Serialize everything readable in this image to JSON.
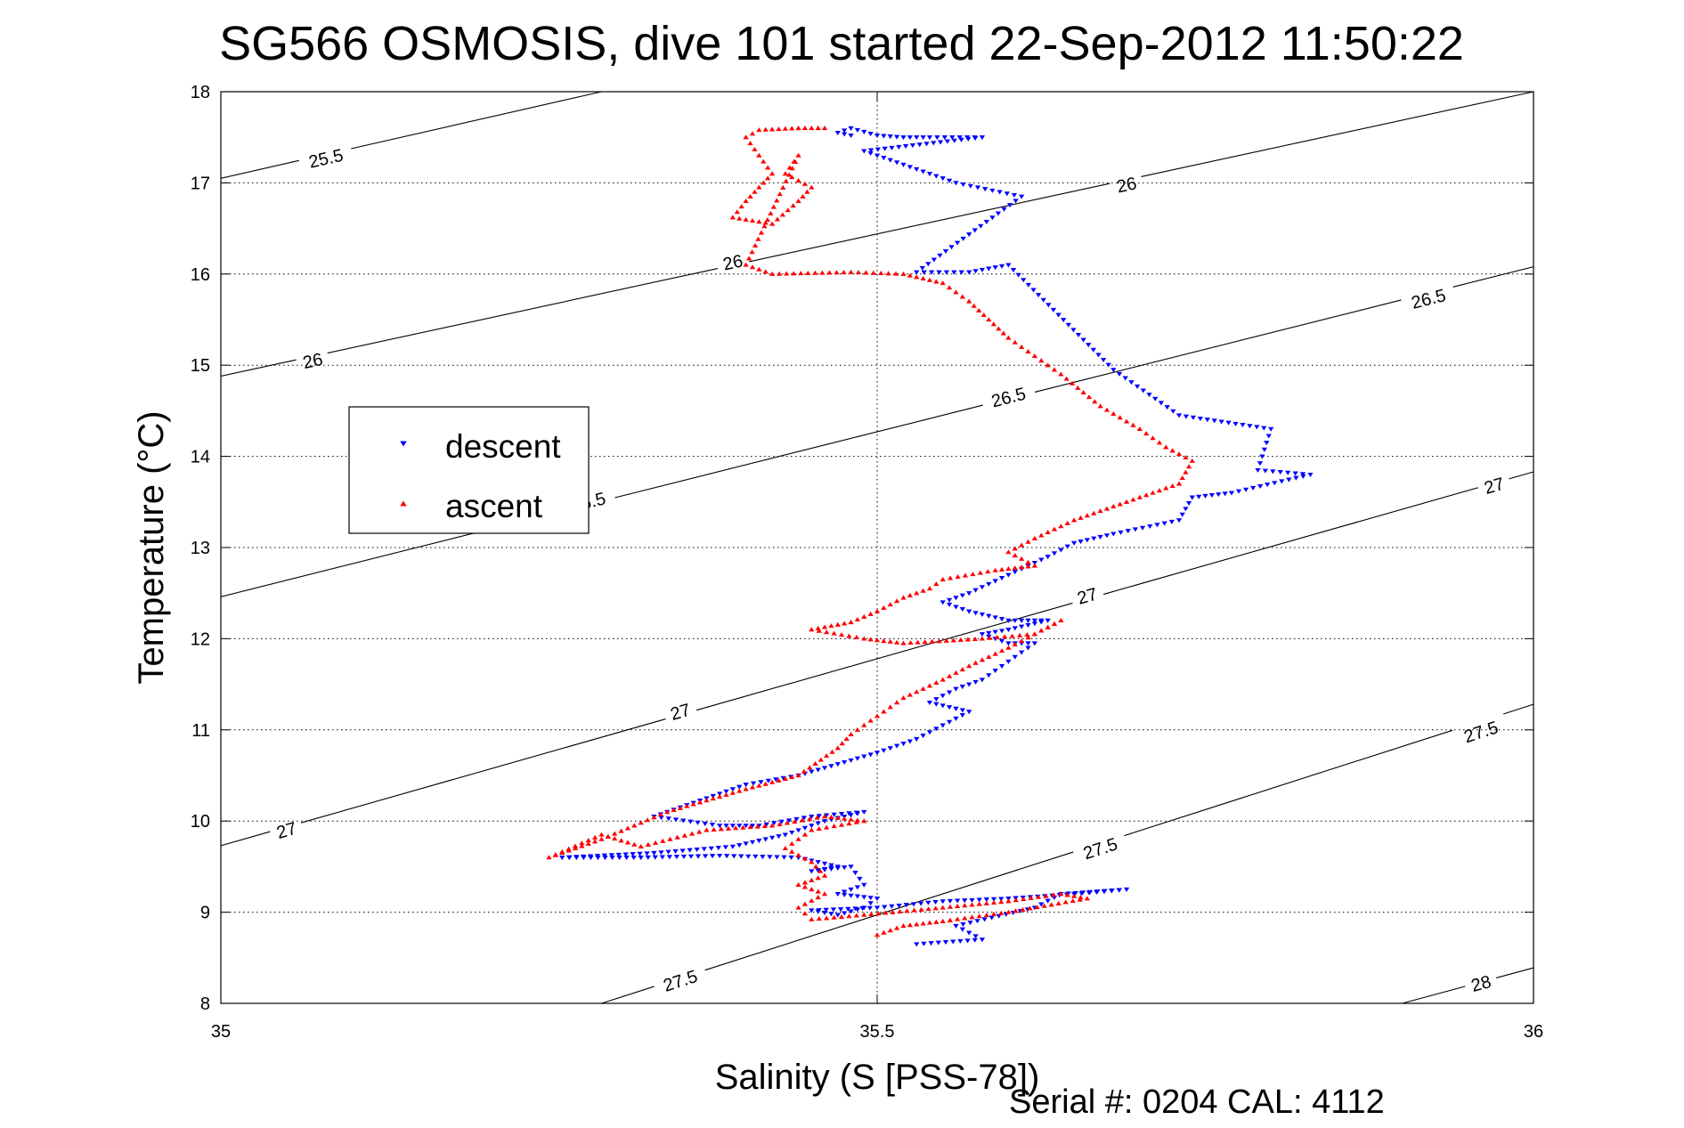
{
  "chart_data": {
    "type": "scatter",
    "title": "SG566 OSMOSIS, dive 101 started 22-Sep-2012 11:50:22",
    "xlabel": "Salinity (S [PSS-78])",
    "ylabel": "Temperature (°C)",
    "xlim": [
      35,
      36
    ],
    "ylim": [
      8,
      18
    ],
    "x_ticks": [
      "35",
      "35.5",
      "36"
    ],
    "y_ticks": [
      "8",
      "9",
      "10",
      "11",
      "12",
      "13",
      "14",
      "15",
      "16",
      "17",
      "18"
    ],
    "grid": true,
    "legend_position": "left-middle",
    "footer": "Serial #: 0204  CAL: 4112",
    "density_contours": [
      {
        "level": 25.5,
        "label": "25.5",
        "points": [
          [
            35.0,
            17.05
          ],
          [
            35.29,
            18.0
          ]
        ],
        "label_positions": [
          [
            35.08,
            17.27
          ]
        ]
      },
      {
        "level": 26.0,
        "label": "26",
        "points": [
          [
            35.0,
            14.88
          ],
          [
            36.0,
            18.0
          ]
        ],
        "label_positions": [
          [
            35.07,
            15.05
          ],
          [
            35.39,
            16.13
          ],
          [
            35.69,
            16.98
          ]
        ]
      },
      {
        "level": 26.5,
        "label": "26.5",
        "points": [
          [
            35.0,
            12.46
          ],
          [
            36.0,
            16.08
          ]
        ],
        "label_positions": [
          [
            35.28,
            13.5
          ],
          [
            35.6,
            14.65
          ],
          [
            35.92,
            15.73
          ]
        ]
      },
      {
        "level": 27.0,
        "label": "27",
        "points": [
          [
            35.0,
            9.73
          ],
          [
            36.0,
            13.83
          ]
        ],
        "label_positions": [
          [
            35.05,
            9.9
          ],
          [
            35.35,
            11.2
          ],
          [
            35.66,
            12.47
          ],
          [
            35.97,
            13.68
          ]
        ]
      },
      {
        "level": 27.5,
        "label": "27.5",
        "points": [
          [
            35.29,
            8.0
          ],
          [
            36.0,
            11.28
          ]
        ],
        "label_positions": [
          [
            35.35,
            8.25
          ],
          [
            35.67,
            9.7
          ],
          [
            35.96,
            10.98
          ]
        ]
      },
      {
        "level": 28.0,
        "label": "28",
        "points": [
          [
            35.9,
            8.0
          ],
          [
            36.0,
            8.39
          ]
        ],
        "label_positions": [
          [
            35.96,
            8.22
          ]
        ]
      }
    ],
    "series": [
      {
        "name": "descent",
        "color": "#0000ff",
        "marker": "triangle-down",
        "path": [
          [
            35.48,
            17.52
          ],
          [
            35.47,
            17.55
          ],
          [
            35.48,
            17.6
          ],
          [
            35.5,
            17.52
          ],
          [
            35.52,
            17.5
          ],
          [
            35.54,
            17.5
          ],
          [
            35.58,
            17.5
          ],
          [
            35.49,
            17.35
          ],
          [
            35.56,
            17.0
          ],
          [
            35.61,
            16.85
          ],
          [
            35.53,
            16.02
          ],
          [
            35.57,
            16.02
          ],
          [
            35.6,
            16.1
          ],
          [
            35.68,
            14.95
          ],
          [
            35.73,
            14.45
          ],
          [
            35.8,
            14.3
          ],
          [
            35.79,
            13.85
          ],
          [
            35.83,
            13.8
          ],
          [
            35.77,
            13.6
          ],
          [
            35.74,
            13.55
          ],
          [
            35.73,
            13.3
          ],
          [
            35.68,
            13.15
          ],
          [
            35.65,
            13.05
          ],
          [
            35.63,
            12.9
          ],
          [
            35.6,
            12.7
          ],
          [
            35.57,
            12.5
          ],
          [
            35.55,
            12.4
          ],
          [
            35.57,
            12.3
          ],
          [
            35.6,
            12.2
          ],
          [
            35.63,
            12.2
          ],
          [
            35.6,
            12.1
          ],
          [
            35.58,
            12.05
          ],
          [
            35.6,
            11.95
          ],
          [
            35.62,
            11.95
          ],
          [
            35.6,
            11.75
          ],
          [
            35.58,
            11.55
          ],
          [
            35.56,
            11.45
          ],
          [
            35.54,
            11.3
          ],
          [
            35.57,
            11.2
          ],
          [
            35.55,
            11.05
          ],
          [
            35.53,
            10.9
          ],
          [
            35.5,
            10.75
          ],
          [
            35.44,
            10.5
          ],
          [
            35.4,
            10.4
          ],
          [
            35.36,
            10.2
          ],
          [
            35.33,
            10.05
          ],
          [
            35.38,
            9.95
          ],
          [
            35.41,
            9.95
          ],
          [
            35.45,
            10.05
          ],
          [
            35.49,
            10.1
          ],
          [
            35.46,
            10.0
          ],
          [
            35.43,
            9.85
          ],
          [
            35.39,
            9.72
          ],
          [
            35.33,
            9.65
          ],
          [
            35.26,
            9.6
          ],
          [
            35.32,
            9.6
          ],
          [
            35.38,
            9.62
          ],
          [
            35.44,
            9.6
          ],
          [
            35.47,
            9.5
          ],
          [
            35.45,
            9.45
          ],
          [
            35.48,
            9.5
          ],
          [
            35.49,
            9.3
          ],
          [
            35.47,
            9.2
          ],
          [
            35.5,
            9.15
          ],
          [
            35.49,
            9.05
          ],
          [
            35.47,
            8.97
          ],
          [
            35.45,
            9.02
          ],
          [
            35.5,
            9.05
          ],
          [
            35.55,
            9.12
          ],
          [
            35.6,
            9.15
          ],
          [
            35.65,
            9.2
          ],
          [
            35.69,
            9.25
          ],
          [
            35.64,
            9.2
          ],
          [
            35.62,
            9.05
          ],
          [
            35.56,
            8.85
          ],
          [
            35.58,
            8.7
          ],
          [
            35.53,
            8.65
          ]
        ]
      },
      {
        "name": "ascent",
        "color": "#ff0000",
        "marker": "triangle-up",
        "path": [
          [
            35.46,
            17.6
          ],
          [
            35.44,
            17.6
          ],
          [
            35.41,
            17.58
          ],
          [
            35.4,
            17.5
          ],
          [
            35.41,
            17.3
          ],
          [
            35.42,
            17.1
          ],
          [
            35.41,
            16.95
          ],
          [
            35.4,
            16.8
          ],
          [
            35.39,
            16.62
          ],
          [
            35.42,
            16.55
          ],
          [
            35.44,
            16.8
          ],
          [
            35.45,
            16.95
          ],
          [
            35.43,
            17.1
          ],
          [
            35.44,
            17.3
          ],
          [
            35.4,
            16.1
          ],
          [
            35.42,
            16.0
          ],
          [
            35.48,
            16.02
          ],
          [
            35.52,
            16.0
          ],
          [
            35.55,
            15.9
          ],
          [
            35.57,
            15.7
          ],
          [
            35.6,
            15.3
          ],
          [
            35.62,
            15.1
          ],
          [
            35.64,
            14.9
          ],
          [
            35.67,
            14.55
          ],
          [
            35.7,
            14.3
          ],
          [
            35.72,
            14.1
          ],
          [
            35.74,
            13.95
          ],
          [
            35.73,
            13.7
          ],
          [
            35.68,
            13.45
          ],
          [
            35.65,
            13.3
          ],
          [
            35.62,
            13.1
          ],
          [
            35.6,
            12.95
          ],
          [
            35.62,
            12.8
          ],
          [
            35.59,
            12.75
          ],
          [
            35.55,
            12.65
          ],
          [
            35.54,
            12.55
          ],
          [
            35.52,
            12.45
          ],
          [
            35.5,
            12.3
          ],
          [
            35.48,
            12.18
          ],
          [
            35.45,
            12.1
          ],
          [
            35.49,
            12.0
          ],
          [
            35.52,
            11.95
          ],
          [
            35.58,
            12.0
          ],
          [
            35.62,
            12.05
          ],
          [
            35.64,
            12.2
          ],
          [
            35.6,
            11.9
          ],
          [
            35.57,
            11.7
          ],
          [
            35.55,
            11.55
          ],
          [
            35.52,
            11.35
          ],
          [
            35.5,
            11.15
          ],
          [
            35.48,
            10.95
          ],
          [
            35.47,
            10.8
          ],
          [
            35.44,
            10.5
          ],
          [
            35.4,
            10.35
          ],
          [
            35.34,
            10.1
          ],
          [
            35.29,
            9.8
          ],
          [
            35.25,
            9.6
          ],
          [
            35.29,
            9.85
          ],
          [
            35.32,
            9.72
          ],
          [
            35.37,
            9.9
          ],
          [
            35.42,
            9.95
          ],
          [
            35.46,
            10.05
          ],
          [
            35.49,
            10.0
          ],
          [
            35.45,
            9.9
          ],
          [
            35.43,
            9.7
          ],
          [
            35.45,
            9.55
          ],
          [
            35.46,
            9.4
          ],
          [
            35.44,
            9.3
          ],
          [
            35.46,
            9.2
          ],
          [
            35.44,
            9.05
          ],
          [
            35.45,
            8.92
          ],
          [
            35.49,
            8.97
          ],
          [
            35.55,
            9.05
          ],
          [
            35.6,
            9.12
          ],
          [
            35.64,
            9.2
          ],
          [
            35.66,
            9.15
          ],
          [
            35.6,
            9.0
          ],
          [
            35.55,
            8.9
          ],
          [
            35.52,
            8.85
          ],
          [
            35.5,
            8.75
          ]
        ]
      }
    ]
  },
  "legend": {
    "items": [
      {
        "label": "descent",
        "color": "#0000ff",
        "marker": "triangle-down"
      },
      {
        "label": "ascent",
        "color": "#ff0000",
        "marker": "triangle-up"
      }
    ]
  }
}
